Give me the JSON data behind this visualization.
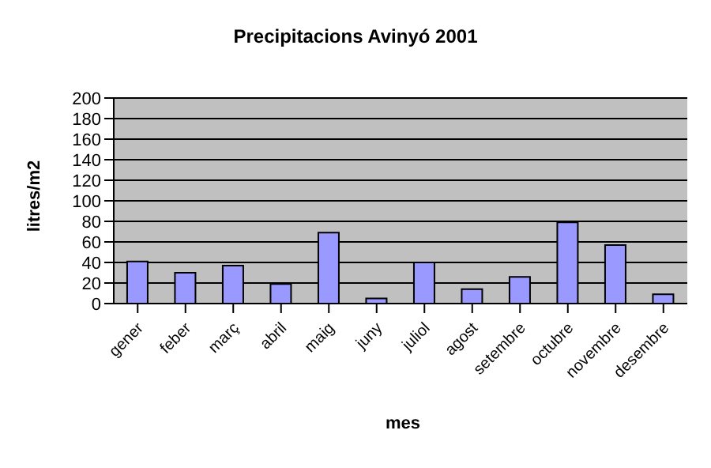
{
  "chart_data": {
    "type": "bar",
    "title": "Precipitacions Avinyó 2001",
    "xlabel": "mes",
    "ylabel": "litres/m2",
    "categories": [
      "gener",
      "feber",
      "març",
      "abril",
      "maig",
      "juny",
      "juliol",
      "agost",
      "setembre",
      "octubre",
      "novembre",
      "desembre"
    ],
    "values": [
      41,
      30,
      37,
      19,
      69,
      5,
      40,
      14,
      26,
      79,
      57,
      9
    ],
    "color": "#9999ff",
    "ylim": [
      0,
      200
    ],
    "yticks": [
      0,
      20,
      40,
      60,
      80,
      100,
      120,
      140,
      160,
      180,
      200
    ],
    "grid": "y",
    "legend": false
  }
}
